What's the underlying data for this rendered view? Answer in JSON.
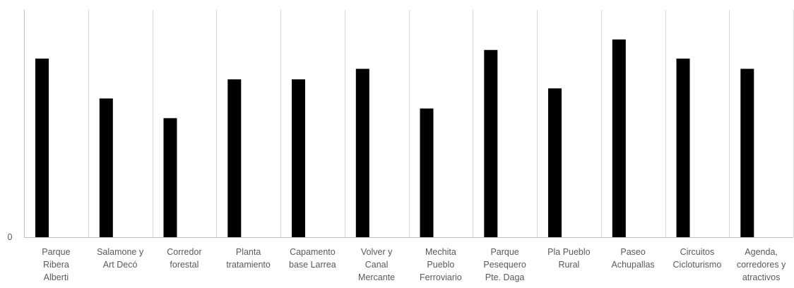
{
  "chart_data": {
    "type": "bar",
    "categories": [
      [
        "Parque",
        "Ribera",
        "Alberti"
      ],
      [
        "Salamone y",
        "Art Decó"
      ],
      [
        "Corredor",
        "forestal"
      ],
      [
        "Planta",
        "tratamiento"
      ],
      [
        "Capamento",
        "base Larrea"
      ],
      [
        "Volver y",
        "Canal",
        "Mercante"
      ],
      [
        "Mechita",
        "Pueblo",
        "Ferroviario"
      ],
      [
        "Parque",
        "Pesequero",
        "Pte. Daga"
      ],
      [
        "Pla Pueblo",
        "Rural"
      ],
      [
        "Paseo",
        "Achupallas"
      ],
      [
        "Circuitos",
        "Cicloturismo"
      ],
      [
        "Agenda,",
        "corredores y",
        "atractivos"
      ]
    ],
    "values": [
      8.33,
      6.47,
      5.55,
      7.36,
      7.36,
      7.85,
      6.0,
      8.73,
      6.94,
      9.22,
      8.33,
      7.85
    ],
    "ylim": [
      0,
      10.6
    ],
    "yticks": [
      "0"
    ],
    "grid": true,
    "bar_color": "#000000",
    "grid_color": "#d9d9d9",
    "axis_color": "#bfbfbf",
    "label_color": "#595959"
  }
}
